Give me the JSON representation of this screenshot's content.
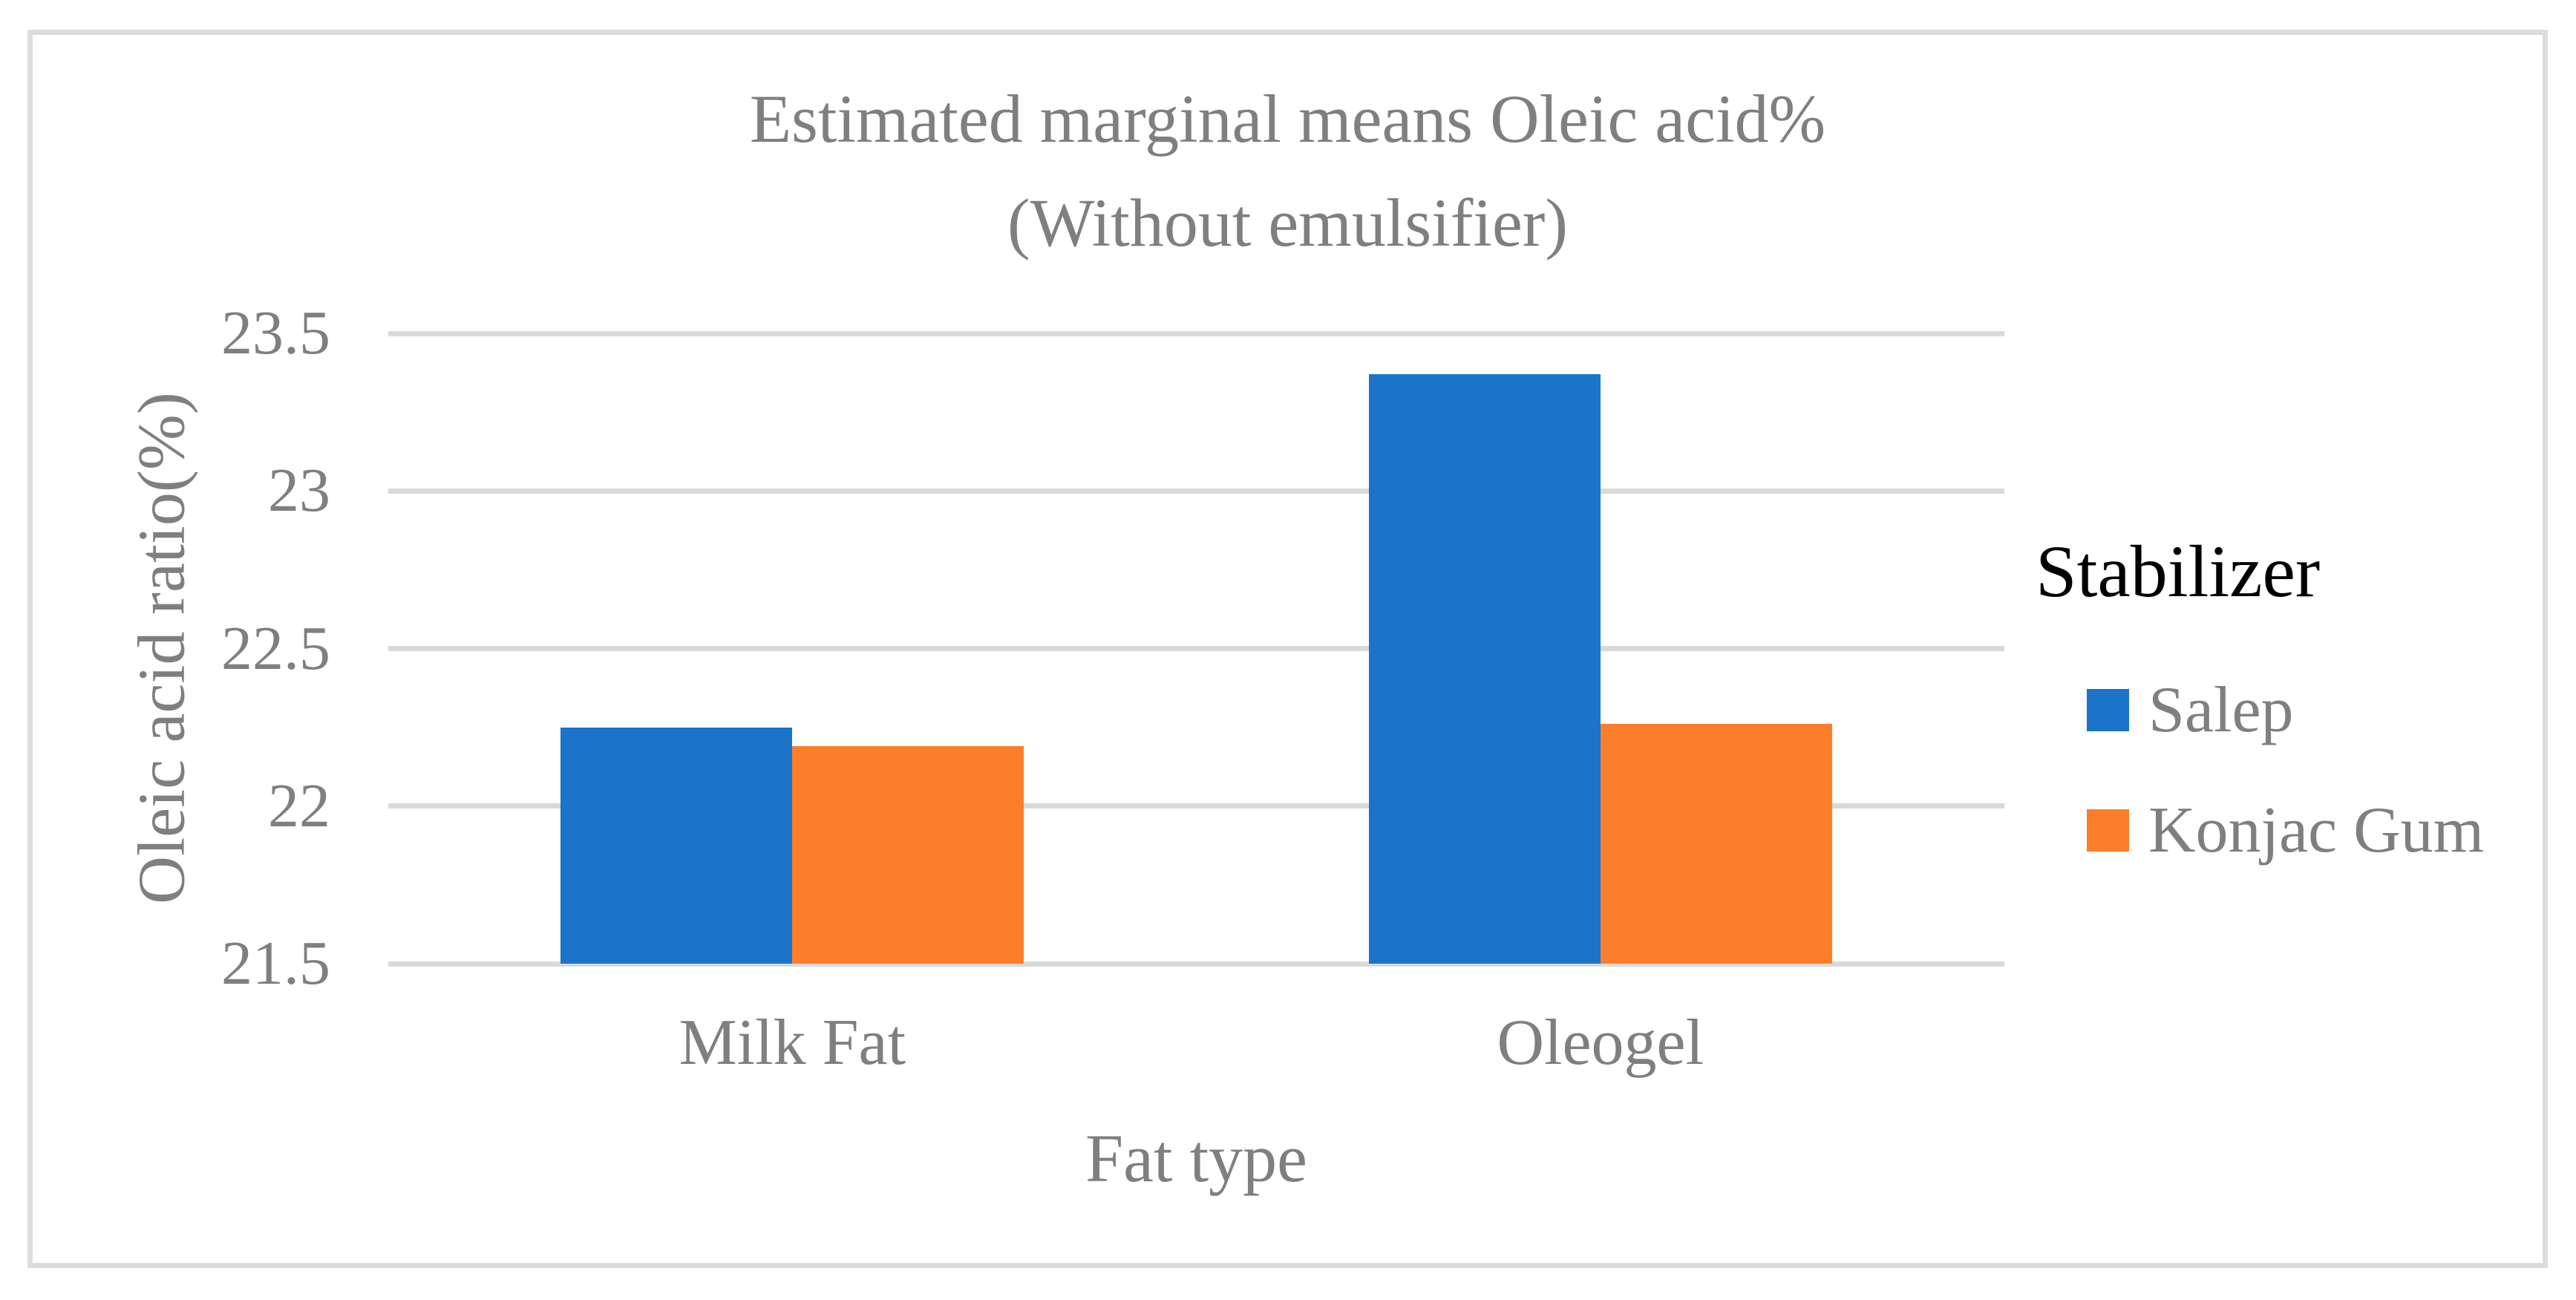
{
  "chart_data": {
    "type": "bar",
    "title": "Estimated marginal means Oleic acid%",
    "subtitle": "(Without emulsifier)",
    "categories": [
      "Milk Fat",
      "Oleogel"
    ],
    "series": [
      {
        "name": "Salep",
        "color": "#1B74C9",
        "values": [
          22.25,
          23.37
        ]
      },
      {
        "name": "Konjac Gum",
        "color": "#FC7E2A",
        "values": [
          22.19,
          22.26
        ]
      }
    ],
    "xlabel": "Fat type",
    "ylabel": "Oleic acid ratio(%)",
    "ylim": [
      21.5,
      23.5
    ],
    "ytick_step": 0.5,
    "ytick_labels": [
      "21.5",
      "22",
      "22.5",
      "23",
      "23.5"
    ],
    "grid": "horizontal",
    "legend": {
      "title": "Stabilizer",
      "position": "right"
    }
  },
  "style": {
    "text_gray": "#7F7F7F",
    "grid_color": "#D9D9D9",
    "frame_border_color": "#DCDCDC",
    "legend_title_color": "#000000",
    "background": "#FFFFFF"
  }
}
